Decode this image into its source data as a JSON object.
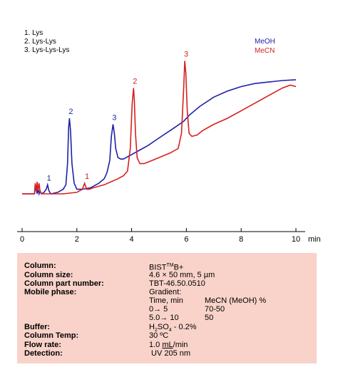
{
  "chart_data": {
    "type": "line",
    "x_unit": "min",
    "xlim": [
      0,
      10.2
    ],
    "ylim": [
      0,
      1
    ],
    "x_ticks": [
      "0",
      "2",
      "4",
      "6",
      "8",
      "10"
    ],
    "legend_position": "top-right",
    "peak_legend": [
      "1. Lys",
      "2. Lys-Lys",
      "3. Lys-Lys-Lys"
    ],
    "series": [
      {
        "name": "MeOH",
        "color": "#1f1faa",
        "x": [
          0.0,
          0.45,
          0.5,
          0.55,
          0.58,
          0.62,
          0.66,
          0.7,
          0.8,
          0.88,
          0.93,
          0.98,
          1.05,
          1.3,
          1.5,
          1.6,
          1.66,
          1.7,
          1.73,
          1.77,
          1.82,
          1.9,
          2.0,
          2.2,
          2.5,
          2.8,
          3.0,
          3.1,
          3.2,
          3.26,
          3.32,
          3.37,
          3.42,
          3.5,
          3.6,
          3.7,
          3.8,
          3.9,
          4.0,
          4.3,
          4.6,
          5.0,
          5.5,
          5.9,
          6.1,
          6.5,
          7.0,
          7.5,
          8.0,
          8.5,
          9.0,
          9.5,
          10.0
        ],
        "y": [
          0.0,
          0.0,
          0.05,
          0.0,
          0.04,
          0.0,
          0.02,
          0.0,
          0.01,
          0.03,
          0.06,
          0.02,
          0.0,
          0.01,
          0.03,
          0.06,
          0.2,
          0.44,
          0.5,
          0.41,
          0.2,
          0.07,
          0.03,
          0.03,
          0.04,
          0.07,
          0.1,
          0.14,
          0.22,
          0.38,
          0.46,
          0.4,
          0.3,
          0.24,
          0.23,
          0.23,
          0.24,
          0.25,
          0.26,
          0.29,
          0.32,
          0.37,
          0.43,
          0.48,
          0.52,
          0.58,
          0.64,
          0.68,
          0.71,
          0.73,
          0.74,
          0.75,
          0.755
        ]
      },
      {
        "name": "MeCN",
        "color": "#d62020",
        "x": [
          0.0,
          0.45,
          0.48,
          0.52,
          0.55,
          0.58,
          0.62,
          0.66,
          0.75,
          1.0,
          1.5,
          2.0,
          2.2,
          2.28,
          2.32,
          2.36,
          2.45,
          2.6,
          3.0,
          3.5,
          3.7,
          3.85,
          3.95,
          4.02,
          4.07,
          4.1,
          4.14,
          4.2,
          4.3,
          4.45,
          4.6,
          5.0,
          5.4,
          5.7,
          5.82,
          5.9,
          5.94,
          5.98,
          6.03,
          6.1,
          6.2,
          6.4,
          6.6,
          7.0,
          7.5,
          8.0,
          8.5,
          9.0,
          9.5,
          9.8,
          10.0
        ],
        "y": [
          0.0,
          0.0,
          0.07,
          0.02,
          0.08,
          0.02,
          0.07,
          0.01,
          0.0,
          0.0,
          0.0,
          0.01,
          0.03,
          0.07,
          0.05,
          0.03,
          0.03,
          0.04,
          0.06,
          0.1,
          0.12,
          0.15,
          0.3,
          0.6,
          0.7,
          0.62,
          0.4,
          0.24,
          0.2,
          0.2,
          0.21,
          0.24,
          0.27,
          0.3,
          0.4,
          0.7,
          0.88,
          0.8,
          0.55,
          0.4,
          0.38,
          0.39,
          0.42,
          0.46,
          0.5,
          0.55,
          0.6,
          0.65,
          0.7,
          0.72,
          0.71
        ]
      }
    ],
    "peak_labels": [
      {
        "text": "1",
        "series": "MeOH",
        "x": 0.93,
        "y": 0.06
      },
      {
        "text": "2",
        "series": "MeOH",
        "x": 1.73,
        "y": 0.5
      },
      {
        "text": "3",
        "series": "MeOH",
        "x": 3.32,
        "y": 0.46
      },
      {
        "text": "1",
        "series": "MeCN",
        "x": 2.32,
        "y": 0.07
      },
      {
        "text": "2",
        "series": "MeCN",
        "x": 4.07,
        "y": 0.7
      },
      {
        "text": "3",
        "series": "MeCN",
        "x": 5.94,
        "y": 0.88
      }
    ]
  },
  "conditions": {
    "column": {
      "label": "Column:",
      "value_pre": "BIST",
      "value_sup": "TM",
      "value_post": "B+"
    },
    "column_size": {
      "label": "Column size:",
      "value": "4.6 × 50 mm, 5 µm"
    },
    "part_number": {
      "label": "Column part number:",
      "value": "TBT-46.50.0510"
    },
    "mobile_phase": {
      "label": "Mobile phase:",
      "value": "Gradient:"
    },
    "gradient": {
      "header_time": "Time, min",
      "header_pct": "MeCN (MeOH) %",
      "rows": [
        {
          "time": "0→ 5",
          "pct": "70-50"
        },
        {
          "time": "5.0→ 10",
          "pct": "50"
        }
      ]
    },
    "buffer": {
      "label": "Buffer:",
      "value_pre": "H",
      "sub1": "2",
      "value_mid": "SO",
      "sub2": "4",
      "value_post": " - 0.2%"
    },
    "column_temp": {
      "label": "Column Temp:",
      "value": "30 ºC"
    },
    "flow_rate": {
      "label": "Flow rate:",
      "value_pre": "1.0 ",
      "value_ul": "mL",
      "value_post": "/min"
    },
    "detection": {
      "label": "Detection:",
      "value": "UV 205 nm"
    }
  }
}
